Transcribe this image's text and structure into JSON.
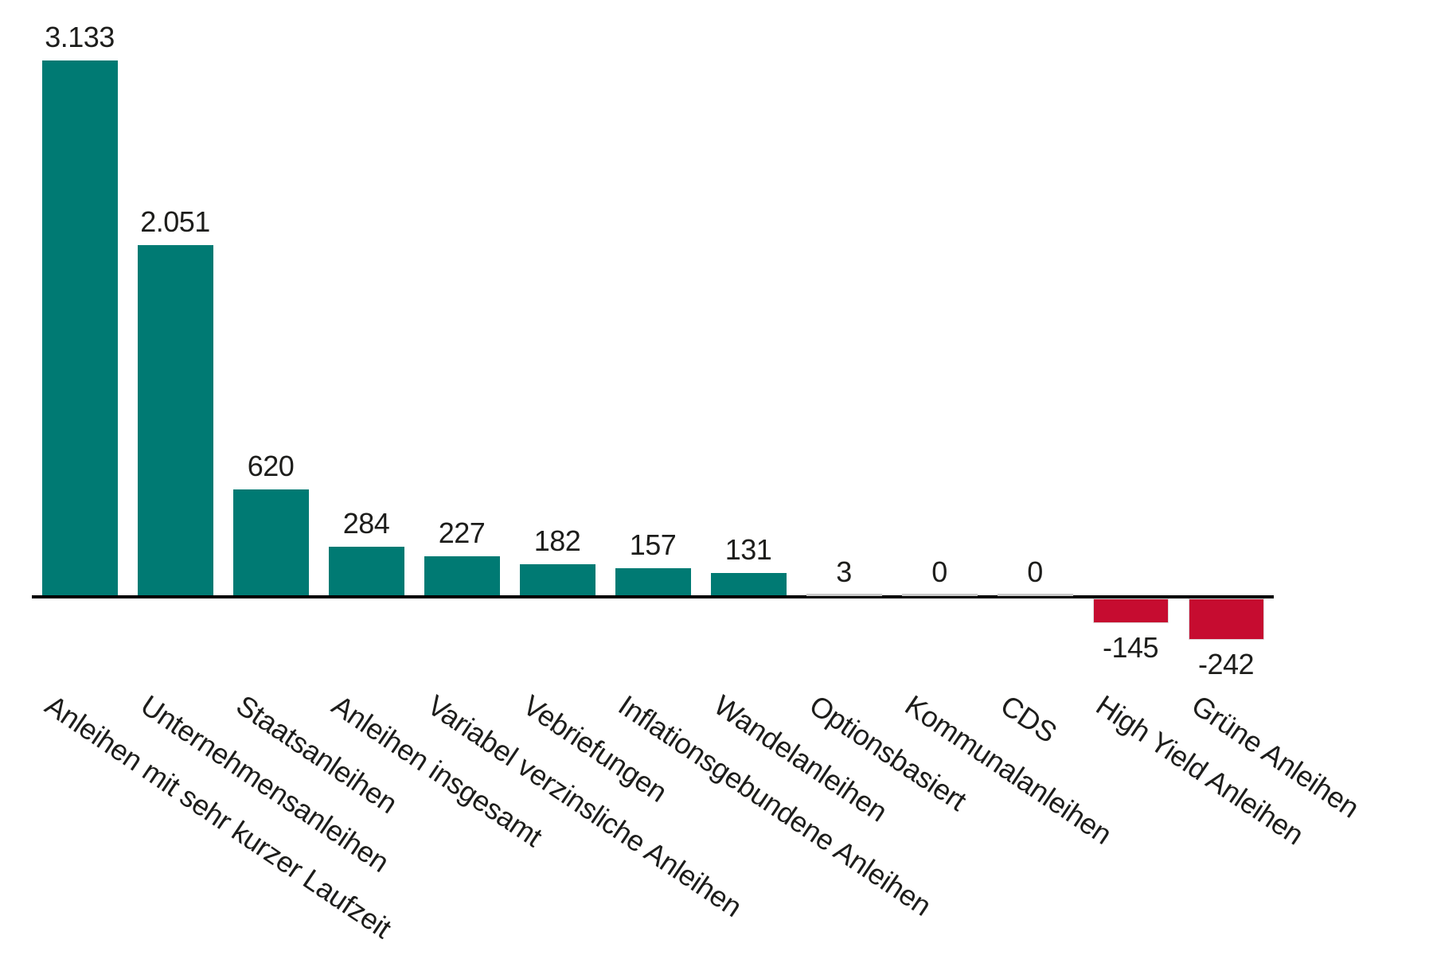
{
  "chart_data": {
    "type": "bar",
    "title": "",
    "xlabel": "",
    "ylabel": "",
    "grid": false,
    "legend": null,
    "ylim": [
      -242,
      3133
    ],
    "tick_label_rotation_deg": 34,
    "categories": [
      "Anleihen mit sehr kurzer Laufzeit",
      "Unternehmensanleihen",
      "Staatsanleihen",
      "Anleihen insgesamt",
      "Variabel verzinsliche Anleihen",
      "Vebriefungen",
      "Inflationsgebundene Anleihen",
      "Wandelanleihen",
      "Optionsbasiert",
      "Kommunalanleihen",
      "CDS",
      "High Yield Anleihen",
      "Grüne Anleihen"
    ],
    "values": [
      3133,
      2051,
      620,
      284,
      227,
      182,
      157,
      131,
      3,
      0,
      0,
      -145,
      -242
    ],
    "value_labels": [
      "3.133",
      "2.051",
      "620",
      "284",
      "227",
      "182",
      "157",
      "131",
      "3",
      "0",
      "0",
      "-145",
      "-242"
    ],
    "colors": {
      "positive_bar": "#007A73",
      "negative_bar": "#C60C30",
      "zero_bar": "#c9c9c9",
      "axis": "#000000",
      "text": "#1d1d1b"
    }
  }
}
